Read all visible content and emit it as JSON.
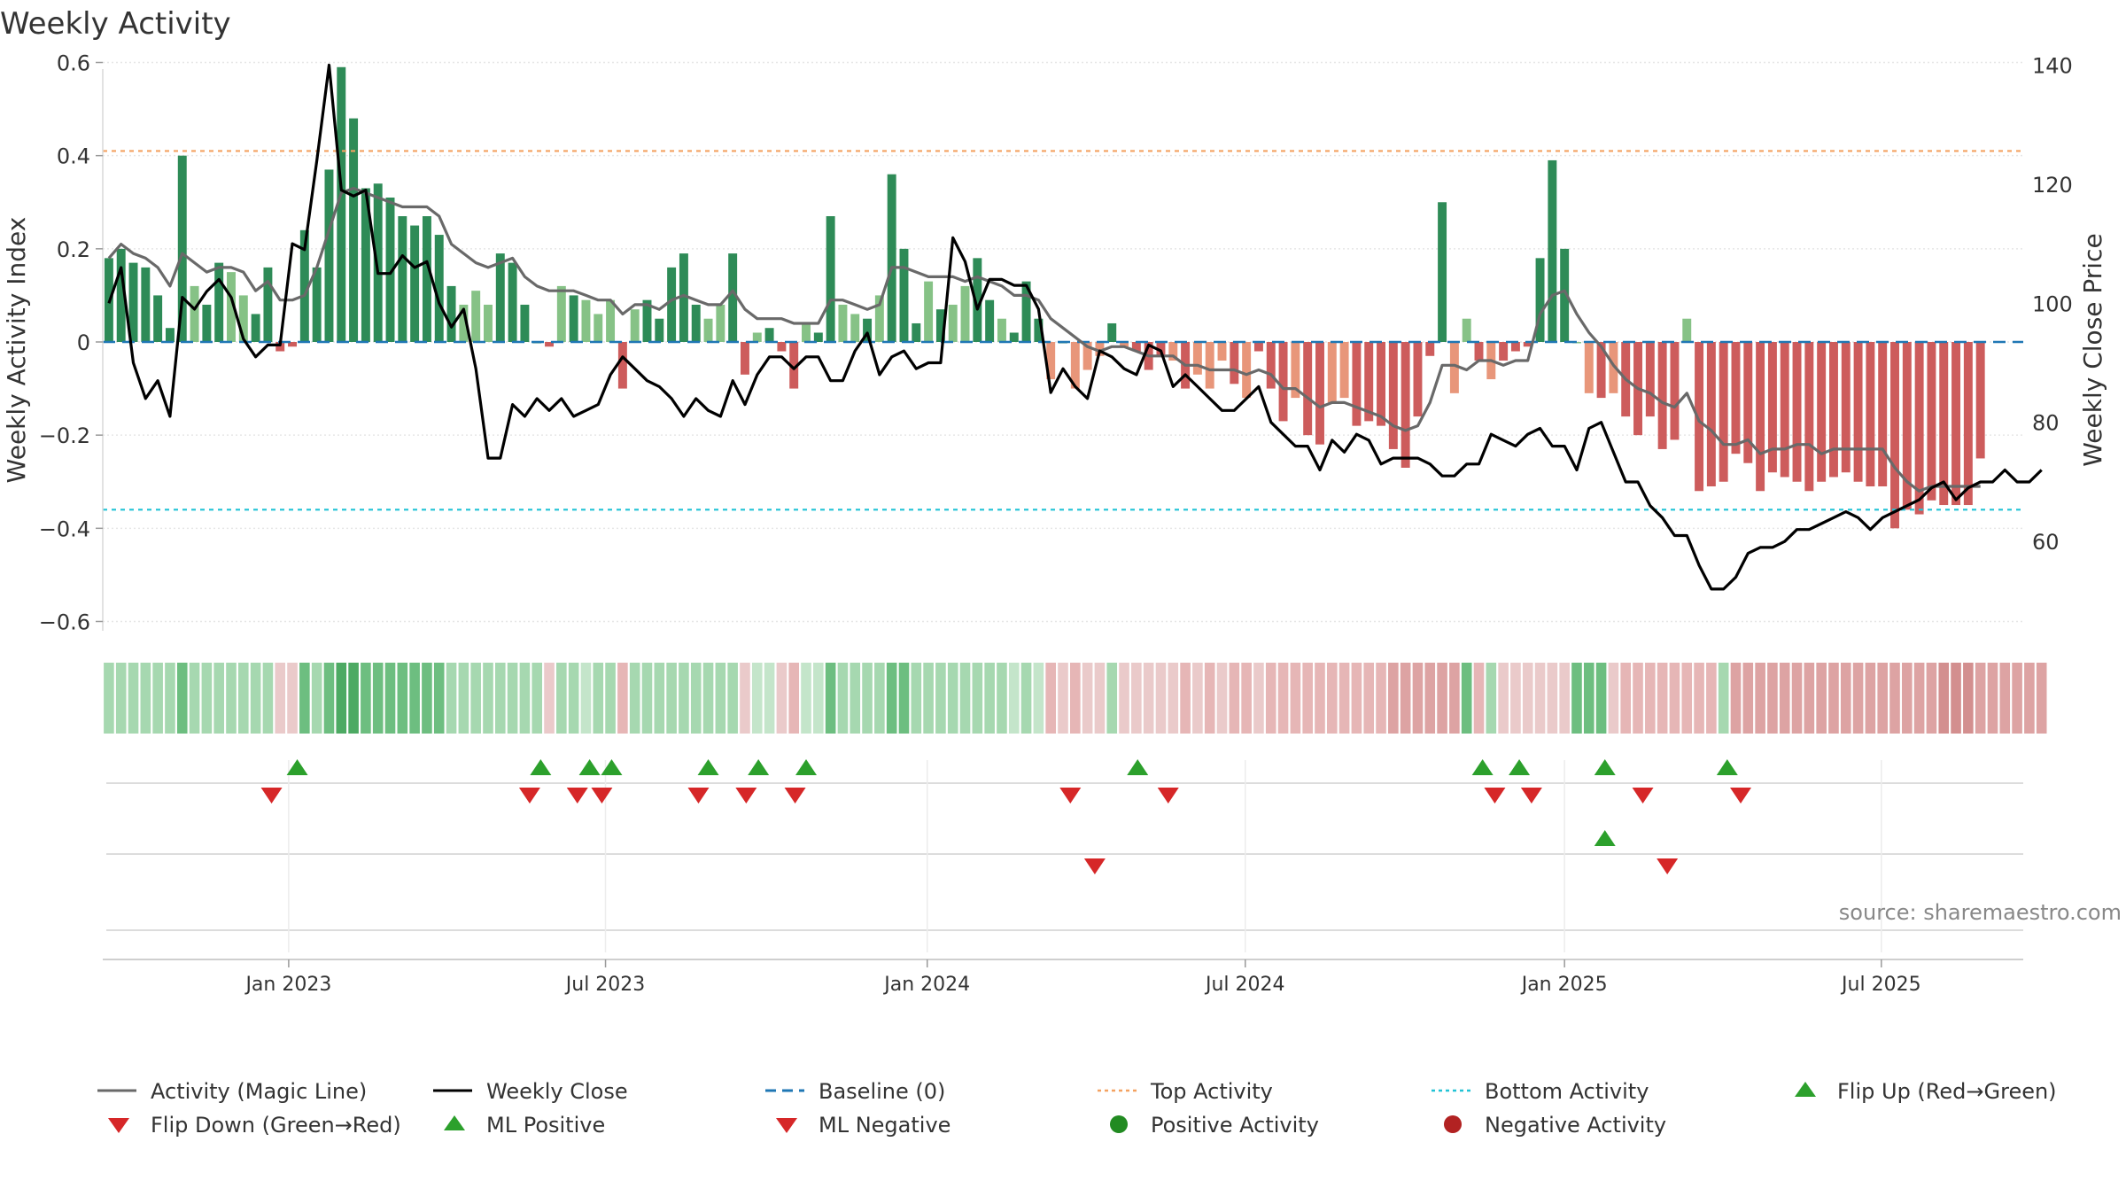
{
  "chart_data": {
    "type": "bar",
    "title": "Weekly Activity",
    "ylabel_left": "Weekly Activity Index",
    "ylabel_right": "Weekly Close Price",
    "ylim_left": [
      -0.62,
      0.62
    ],
    "ylim_right": [
      45,
      142
    ],
    "yticks_left": [
      {
        "v": 0.6,
        "label": "0.6"
      },
      {
        "v": 0.4,
        "label": "0.4"
      },
      {
        "v": 0.2,
        "label": "0.2"
      },
      {
        "v": 0,
        "label": "0"
      },
      {
        "v": -0.2,
        "label": "−0.2"
      },
      {
        "v": -0.4,
        "label": "−0.4"
      },
      {
        "v": -0.6,
        "label": "−0.6"
      }
    ],
    "yticks_right": [
      {
        "v": 140,
        "label": "140"
      },
      {
        "v": 120,
        "label": "120"
      },
      {
        "v": 100,
        "label": "100"
      },
      {
        "v": 80,
        "label": "80"
      },
      {
        "v": 60,
        "label": "60"
      }
    ],
    "x_range_weeks": [
      0,
      157
    ],
    "xticks": [
      {
        "w": 14.7,
        "label": "Jan 2023"
      },
      {
        "w": 40.6,
        "label": "Jul 2023"
      },
      {
        "w": 66.9,
        "label": "Jan 2024"
      },
      {
        "w": 92.9,
        "label": "Jul 2024"
      },
      {
        "w": 119.0,
        "label": "Jan 2025"
      },
      {
        "w": 144.9,
        "label": "Jul 2025"
      }
    ],
    "top_activity": 0.41,
    "bottom_activity": -0.36,
    "baseline": 0,
    "activity": [
      0.18,
      0.2,
      0.17,
      0.16,
      0.1,
      0.03,
      0.4,
      0.12,
      0.08,
      0.17,
      0.15,
      0.1,
      0.06,
      0.16,
      -0.02,
      -0.01,
      0.24,
      0.16,
      0.37,
      0.59,
      0.48,
      0.33,
      0.34,
      0.31,
      0.27,
      0.25,
      0.27,
      0.23,
      0.12,
      0.08,
      0.11,
      0.08,
      0.19,
      0.17,
      0.08,
      0.0,
      -0.01,
      0.12,
      0.1,
      0.09,
      0.06,
      0.09,
      -0.1,
      0.07,
      0.09,
      0.05,
      0.16,
      0.19,
      0.08,
      0.05,
      0.08,
      0.19,
      -0.07,
      0.02,
      0.03,
      -0.02,
      -0.1,
      0.04,
      0.02,
      0.27,
      0.08,
      0.06,
      0.05,
      0.1,
      0.36,
      0.2,
      0.04,
      0.13,
      0.07,
      0.08,
      0.12,
      0.18,
      0.09,
      0.05,
      0.02,
      0.13,
      0.05,
      -0.08,
      0.0,
      -0.1,
      -0.06,
      -0.03,
      0.04,
      -0.01,
      -0.02,
      -0.06,
      -0.03,
      -0.04,
      -0.1,
      -0.07,
      -0.1,
      -0.04,
      -0.09,
      -0.12,
      -0.02,
      -0.1,
      -0.17,
      -0.12,
      -0.2,
      -0.22,
      -0.13,
      -0.12,
      -0.18,
      -0.17,
      -0.18,
      -0.23,
      -0.27,
      -0.16,
      -0.03,
      0.3,
      -0.11,
      0.05,
      -0.04,
      -0.08,
      -0.04,
      -0.02,
      -0.01,
      0.18,
      0.39,
      0.2,
      0.0,
      -0.11,
      -0.12,
      -0.11,
      -0.16,
      -0.2,
      -0.16,
      -0.23,
      -0.21,
      0.05,
      -0.32,
      -0.31,
      -0.3,
      -0.24,
      -0.26,
      -0.32,
      -0.28,
      -0.29,
      -0.3,
      -0.32,
      -0.3,
      -0.29,
      -0.28,
      -0.3,
      -0.31,
      -0.31,
      -0.4,
      -0.36,
      -0.37,
      -0.34,
      -0.35,
      -0.35,
      -0.35,
      -0.25
    ],
    "magic_line": [
      0.18,
      0.21,
      0.19,
      0.18,
      0.16,
      0.12,
      0.19,
      0.17,
      0.15,
      0.16,
      0.16,
      0.15,
      0.11,
      0.13,
      0.09,
      0.09,
      0.1,
      0.16,
      0.24,
      0.32,
      0.33,
      0.32,
      0.31,
      0.3,
      0.29,
      0.29,
      0.29,
      0.27,
      0.21,
      0.19,
      0.17,
      0.16,
      0.17,
      0.18,
      0.14,
      0.12,
      0.11,
      0.11,
      0.11,
      0.1,
      0.09,
      0.09,
      0.06,
      0.08,
      0.08,
      0.07,
      0.09,
      0.1,
      0.09,
      0.08,
      0.08,
      0.11,
      0.07,
      0.05,
      0.05,
      0.05,
      0.04,
      0.04,
      0.04,
      0.09,
      0.09,
      0.08,
      0.07,
      0.08,
      0.16,
      0.16,
      0.15,
      0.14,
      0.14,
      0.14,
      0.13,
      0.14,
      0.13,
      0.12,
      0.1,
      0.1,
      0.09,
      0.05,
      0.03,
      0.01,
      -0.01,
      -0.02,
      -0.01,
      -0.01,
      -0.02,
      -0.03,
      -0.03,
      -0.03,
      -0.05,
      -0.05,
      -0.06,
      -0.06,
      -0.06,
      -0.07,
      -0.06,
      -0.07,
      -0.1,
      -0.1,
      -0.12,
      -0.14,
      -0.13,
      -0.13,
      -0.14,
      -0.15,
      -0.16,
      -0.18,
      -0.19,
      -0.18,
      -0.13,
      -0.05,
      -0.05,
      -0.06,
      -0.04,
      -0.04,
      -0.05,
      -0.04,
      -0.04,
      0.06,
      0.1,
      0.11,
      0.06,
      0.02,
      -0.01,
      -0.05,
      -0.08,
      -0.1,
      -0.11,
      -0.13,
      -0.14,
      -0.11,
      -0.17,
      -0.19,
      -0.22,
      -0.22,
      -0.21,
      -0.24,
      -0.23,
      -0.23,
      -0.22,
      -0.22,
      -0.24,
      -0.23,
      -0.23,
      -0.23,
      -0.23,
      -0.23,
      -0.27,
      -0.3,
      -0.32,
      -0.31,
      -0.31,
      -0.31,
      -0.31,
      -0.31
    ],
    "weekly_close": [
      100,
      106,
      90,
      84,
      87,
      81,
      101,
      99,
      102,
      104,
      101,
      94,
      91,
      93,
      93,
      110,
      109,
      124,
      140,
      119,
      118,
      119,
      105,
      105,
      108,
      106,
      107,
      100,
      96,
      99,
      89,
      74,
      74,
      83,
      81,
      84,
      82,
      84,
      81,
      82,
      83,
      88,
      91,
      89,
      87,
      86,
      84,
      81,
      84,
      82,
      81,
      87,
      83,
      88,
      91,
      91,
      89,
      91,
      91,
      87,
      87,
      92,
      95,
      88,
      91,
      92,
      89,
      90,
      90,
      111,
      107,
      99,
      104,
      104,
      103,
      103,
      99,
      85,
      89,
      86,
      84,
      92,
      91,
      89,
      88,
      93,
      92,
      86,
      88,
      86,
      84,
      82,
      82,
      84,
      86,
      80,
      78,
      76,
      76,
      72,
      77,
      75,
      78,
      77,
      73,
      74,
      74,
      74,
      73,
      71,
      71,
      73,
      73,
      78,
      77,
      76,
      78,
      79,
      76,
      76,
      72,
      79,
      80,
      75,
      70,
      70,
      66,
      64,
      61,
      61,
      56,
      52,
      52,
      54,
      58,
      59,
      59,
      60,
      62,
      62,
      63,
      64,
      65,
      64,
      62,
      64,
      65,
      66,
      67,
      69,
      70,
      67,
      69,
      70,
      70,
      72,
      70,
      70,
      72
    ],
    "heat_strip": [
      "#a6d8b0",
      "#a6d8b0",
      "#a6d8b0",
      "#a6d8b0",
      "#a6d8b0",
      "#a6d8b0",
      "#6dbe80",
      "#a6d8b0",
      "#a6d8b0",
      "#a6d8b0",
      "#a6d8b0",
      "#a6d8b0",
      "#a6d8b0",
      "#a6d8b0",
      "#eacaca",
      "#eacaca",
      "#6dbe80",
      "#a6d8b0",
      "#6dbe80",
      "#4daa63",
      "#4daa63",
      "#6dbe80",
      "#6dbe80",
      "#6dbe80",
      "#6dbe80",
      "#6dbe80",
      "#6dbe80",
      "#6dbe80",
      "#a6d8b0",
      "#a6d8b0",
      "#a6d8b0",
      "#a6d8b0",
      "#a6d8b0",
      "#a6d8b0",
      "#a6d8b0",
      "#a6d8b0",
      "#eacaca",
      "#a6d8b0",
      "#a6d8b0",
      "#c4e5ca",
      "#a6d8b0",
      "#a6d8b0",
      "#e6b6b6",
      "#a6d8b0",
      "#a6d8b0",
      "#a6d8b0",
      "#a6d8b0",
      "#a6d8b0",
      "#a6d8b0",
      "#a6d8b0",
      "#a6d8b0",
      "#a6d8b0",
      "#eacaca",
      "#c4e5ca",
      "#c4e5ca",
      "#eacaca",
      "#e6b6b6",
      "#c4e5ca",
      "#c4e5ca",
      "#6dbe80",
      "#a6d8b0",
      "#a6d8b0",
      "#a6d8b0",
      "#a6d8b0",
      "#6dbe80",
      "#6dbe80",
      "#a6d8b0",
      "#a6d8b0",
      "#a6d8b0",
      "#a6d8b0",
      "#a6d8b0",
      "#a6d8b0",
      "#a6d8b0",
      "#a6d8b0",
      "#c4e5ca",
      "#a6d8b0",
      "#c4e5ca",
      "#e6b6b6",
      "#eacaca",
      "#e6b6b6",
      "#eacaca",
      "#eacaca",
      "#a6d8b0",
      "#eacaca",
      "#eacaca",
      "#eacaca",
      "#eacaca",
      "#eacaca",
      "#e6b6b6",
      "#eacaca",
      "#e6b6b6",
      "#eacaca",
      "#e6b6b6",
      "#e6b6b6",
      "#eacaca",
      "#e6b6b6",
      "#e6b6b6",
      "#e6b6b6",
      "#e6b6b6",
      "#e6b6b6",
      "#e6b6b6",
      "#e6b6b6",
      "#e6b6b6",
      "#e6b6b6",
      "#e6b6b6",
      "#dda3a3",
      "#dda3a3",
      "#dda3a3",
      "#dda3a3",
      "#dda3a3",
      "#dda3a3",
      "#6dbe80",
      "#e6b6b6",
      "#a6d8b0",
      "#eacaca",
      "#eacaca",
      "#eacaca",
      "#eacaca",
      "#eacaca",
      "#eacaca",
      "#6dbe80",
      "#6dbe80",
      "#6dbe80",
      "#eacaca",
      "#e6b6b6",
      "#e6b6b6",
      "#e6b6b6",
      "#e6b6b6",
      "#e6b6b6",
      "#e6b6b6",
      "#e6b6b6",
      "#e6b6b6",
      "#a6d8b0",
      "#dda3a3",
      "#dda3a3",
      "#dda3a3",
      "#dda3a3",
      "#dda3a3",
      "#dda3a3",
      "#dda3a3",
      "#dda3a3",
      "#dda3a3",
      "#dda3a3",
      "#dda3a3",
      "#dda3a3",
      "#dda3a3",
      "#dda3a3",
      "#dda3a3",
      "#dda3a3",
      "#dda3a3",
      "#d38f8f",
      "#d38f8f",
      "#d38f8f",
      "#dda3a3",
      "#dda3a3",
      "#dda3a3",
      "#dda3a3",
      "#dda3a3",
      "#dda3a3"
    ],
    "flip_up_weeks": [
      15.4,
      35.3,
      39.3,
      41.1,
      49.0,
      53.1,
      57.0,
      84.1,
      112.3,
      115.3,
      122.3,
      132.3
    ],
    "flip_down_weeks": [
      13.3,
      34.4,
      38.3,
      40.3,
      48.2,
      52.1,
      56.1,
      78.6,
      86.6,
      113.3,
      116.3,
      125.4,
      133.4
    ],
    "ml_positive_weeks": [
      122.3
    ],
    "ml_negative_weeks": [
      80.6,
      127.4
    ],
    "source": "source: sharemaestro.com",
    "legend": [
      {
        "key": "magic",
        "label": "Activity (Magic Line)"
      },
      {
        "key": "close",
        "label": "Weekly Close"
      },
      {
        "key": "baseline",
        "label": "Baseline (0)"
      },
      {
        "key": "top",
        "label": "Top Activity"
      },
      {
        "key": "bottom",
        "label": "Bottom Activity"
      },
      {
        "key": "flipup",
        "label": "Flip Up (Red→Green)"
      },
      {
        "key": "flipdown",
        "label": "Flip Down (Green→Red)"
      },
      {
        "key": "mlpos",
        "label": "ML Positive"
      },
      {
        "key": "mlneg",
        "label": "ML Negative"
      },
      {
        "key": "posact",
        "label": "Positive Activity"
      },
      {
        "key": "negact",
        "label": "Negative Activity"
      }
    ]
  },
  "colors": {
    "pos_dark": "#2e8b57",
    "pos_light": "#86c286",
    "neg_dark": "#cd5c5c",
    "neg_light": "#e8967a",
    "magic_line": "#696969",
    "close_line": "#000000",
    "baseline": "#1f77b4",
    "top": "#f4a261",
    "bottom": "#22c3d6",
    "flip_up": "#2ca02c",
    "flip_down": "#d62728",
    "pos_dot": "#228b22",
    "neg_dot": "#b22222"
  }
}
